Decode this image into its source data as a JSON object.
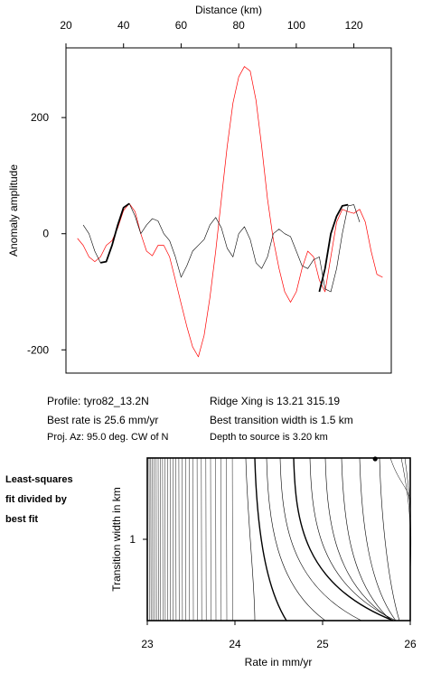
{
  "info": {
    "profile": "Profile: tyro82_13.2N",
    "best_rate": "Best rate is 25.6 mm/yr",
    "proj_az": "Proj. Az: 95.0 deg. CW of N",
    "ridge_xing": "Ridge Xing is 13.21 315.19",
    "best_width": "Best transition width is 1.5 km",
    "depth": "Depth to source is   3.20 km"
  },
  "side_note": [
    "Least-squares",
    "fit divided by",
    "best fit"
  ],
  "chart_data": [
    {
      "type": "line",
      "xlabel": "Distance (km)",
      "ylabel": "Anomaly amplitude",
      "xlim": [
        20,
        133
      ],
      "ylim": [
        -240,
        320
      ],
      "xticks": [
        20,
        40,
        60,
        80,
        100,
        120
      ],
      "yticks": [
        -200,
        0,
        200
      ],
      "grid": false,
      "series": [
        {
          "color": "#ff0000",
          "x": [
            24,
            26,
            28,
            30,
            32,
            34,
            36,
            38,
            40,
            42,
            44,
            46,
            48,
            50,
            52,
            54,
            56,
            58,
            60,
            62,
            64,
            66,
            68,
            70,
            72,
            74,
            76,
            78,
            80,
            82,
            84,
            86,
            88,
            90,
            92,
            94,
            96,
            98,
            100,
            102,
            104,
            106,
            108,
            110,
            112,
            114,
            116,
            118,
            120,
            122,
            124,
            126,
            128,
            130
          ],
          "y": [
            -8,
            -20,
            -40,
            -48,
            -40,
            -20,
            -12,
            10,
            40,
            52,
            38,
            0,
            -30,
            -38,
            -20,
            -20,
            -40,
            -80,
            -120,
            -160,
            -195,
            -212,
            -175,
            -110,
            -30,
            60,
            150,
            225,
            270,
            288,
            280,
            230,
            150,
            60,
            -10,
            -60,
            -100,
            -118,
            -100,
            -60,
            -30,
            -40,
            -80,
            -100,
            -40,
            20,
            42,
            38,
            35,
            42,
            20,
            -30,
            -70,
            -75
          ]
        },
        {
          "color": "#000000",
          "x": [
            26,
            28,
            30,
            32,
            34,
            36,
            38,
            40,
            42,
            44,
            46,
            48,
            50,
            52,
            54,
            56,
            58,
            60,
            62,
            64,
            66,
            68,
            70,
            72,
            74,
            76,
            78,
            80,
            82,
            84,
            86,
            88,
            90,
            92,
            94,
            96,
            98,
            100,
            102,
            104,
            106,
            108,
            110,
            112,
            114,
            116,
            118,
            120,
            122
          ],
          "y": [
            15,
            0,
            -30,
            -50,
            -48,
            -20,
            15,
            45,
            52,
            30,
            0,
            15,
            26,
            22,
            0,
            -12,
            -40,
            -75,
            -55,
            -30,
            -20,
            -10,
            15,
            28,
            10,
            -25,
            -40,
            0,
            12,
            -10,
            -50,
            -60,
            -40,
            0,
            8,
            0,
            -5,
            -30,
            -55,
            -60,
            -45,
            -40,
            -95,
            -100,
            -60,
            0,
            48,
            50,
            20
          ]
        },
        {
          "color": "#000000",
          "x": [
            32,
            34,
            36,
            38,
            40,
            42
          ],
          "y": [
            -50,
            -48,
            -20,
            15,
            45,
            52
          ]
        },
        {
          "color": "#000000",
          "x": [
            108,
            110,
            112,
            114,
            116,
            118
          ],
          "y": [
            -100,
            -60,
            0,
            30,
            48,
            50
          ]
        }
      ]
    },
    {
      "type": "contour",
      "xlabel": "Rate in mm/yr",
      "ylabel": "Transition width in km",
      "xlim": [
        23,
        26
      ],
      "xticks": [
        23,
        24,
        25,
        26
      ],
      "yticks": [
        1
      ],
      "best_fit_point": [
        25.6,
        null
      ]
    }
  ]
}
